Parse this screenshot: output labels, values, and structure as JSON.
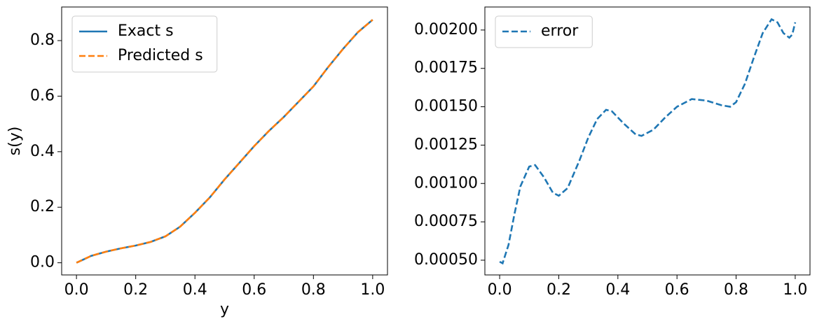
{
  "chart_data": [
    {
      "type": "line",
      "xlabel": "y",
      "ylabel": "s(y)",
      "x": [
        0,
        0.05,
        0.1,
        0.15,
        0.2,
        0.25,
        0.3,
        0.35,
        0.4,
        0.45,
        0.5,
        0.55,
        0.6,
        0.65,
        0.7,
        0.75,
        0.8,
        0.85,
        0.9,
        0.95,
        1.0
      ],
      "series": [
        {
          "name": "Exact s",
          "color": "#1f77b4",
          "linestyle": "solid",
          "values": [
            0,
            0.025,
            0.04,
            0.052,
            0.062,
            0.075,
            0.095,
            0.13,
            0.18,
            0.235,
            0.3,
            0.36,
            0.42,
            0.475,
            0.525,
            0.58,
            0.635,
            0.705,
            0.77,
            0.83,
            0.875
          ]
        },
        {
          "name": "Predicted s",
          "color": "#ff7f0e",
          "linestyle": "dashed",
          "values": [
            0,
            0.025,
            0.04,
            0.052,
            0.062,
            0.075,
            0.095,
            0.13,
            0.18,
            0.235,
            0.3,
            0.36,
            0.42,
            0.475,
            0.525,
            0.58,
            0.635,
            0.705,
            0.77,
            0.83,
            0.875
          ]
        }
      ],
      "xlim": [
        -0.05,
        1.05
      ],
      "ylim": [
        -0.0438,
        0.921
      ],
      "xticks": [
        {
          "value": 0,
          "label": "0.0"
        },
        0.2,
        0.4,
        0.6,
        0.8,
        {
          "value": 1,
          "label": "1.0"
        }
      ],
      "yticks": [
        {
          "value": 0,
          "label": "0.0"
        },
        0.2,
        0.4,
        0.6,
        0.8
      ],
      "legend": "upper-left",
      "grid": false
    },
    {
      "type": "line",
      "x": [
        0,
        0.01,
        0.03,
        0.05,
        0.07,
        0.1,
        0.12,
        0.15,
        0.18,
        0.2,
        0.23,
        0.27,
        0.3,
        0.33,
        0.36,
        0.38,
        0.42,
        0.46,
        0.48,
        0.52,
        0.56,
        0.6,
        0.65,
        0.7,
        0.75,
        0.78,
        0.8,
        0.83,
        0.86,
        0.89,
        0.92,
        0.94,
        0.96,
        0.98,
        0.99,
        1.0
      ],
      "series": [
        {
          "name": "error",
          "color": "#1f77b4",
          "linestyle": "dashed",
          "values": [
            0.00049,
            0.00048,
            0.0006,
            0.0008,
            0.00098,
            0.00111,
            0.00112,
            0.00104,
            0.00094,
            0.00092,
            0.00097,
            0.00115,
            0.0013,
            0.00142,
            0.00148,
            0.00147,
            0.00139,
            0.00132,
            0.00131,
            0.00135,
            0.00143,
            0.0015,
            0.00155,
            0.00154,
            0.00151,
            0.0015,
            0.00153,
            0.00165,
            0.00182,
            0.00198,
            0.00207,
            0.00205,
            0.00198,
            0.00195,
            0.00197,
            0.00205
          ]
        }
      ],
      "xlim": [
        -0.05,
        1.05
      ],
      "ylim": [
        0.000404,
        0.00215
      ],
      "xticks": [
        {
          "value": 0,
          "label": "0.0"
        },
        0.2,
        0.4,
        0.6,
        0.8,
        {
          "value": 1,
          "label": "1.0"
        }
      ],
      "yticks": [
        {
          "value": 0.0005,
          "label": "0.00050"
        },
        {
          "value": 0.00075,
          "label": "0.00075"
        },
        {
          "value": 0.001,
          "label": "0.00100"
        },
        {
          "value": 0.00125,
          "label": "0.00125"
        },
        {
          "value": 0.0015,
          "label": "0.00150"
        },
        {
          "value": 0.00175,
          "label": "0.00175"
        },
        {
          "value": 0.002,
          "label": "0.00200"
        }
      ],
      "legend": "upper-left",
      "grid": false
    }
  ]
}
